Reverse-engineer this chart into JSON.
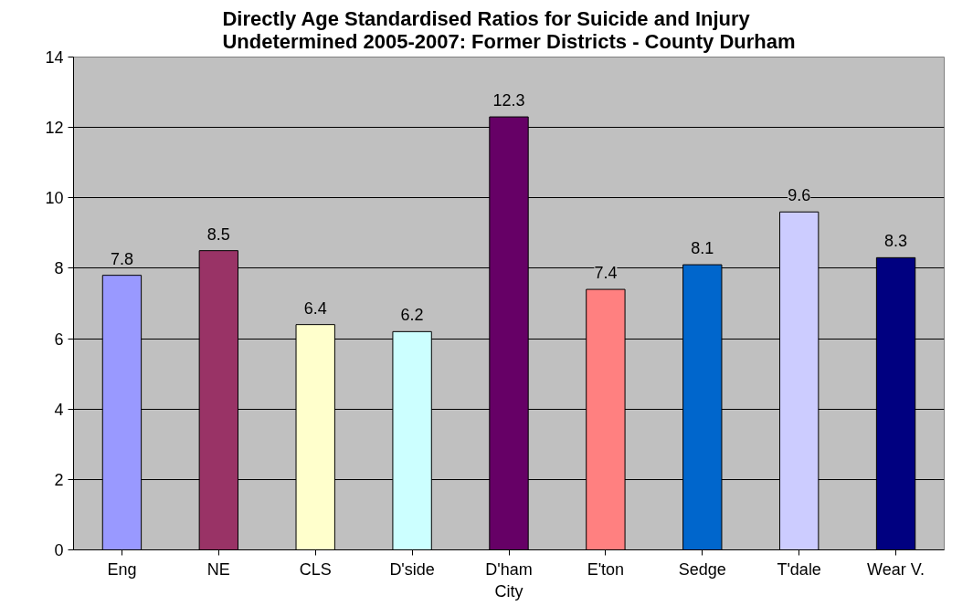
{
  "chart_data": {
    "type": "bar",
    "title": "Directly Age Standardised Ratios for Suicide and Injury\nUndetermined 2005-2007: Former Districts - County Durham",
    "categories": [
      "Eng",
      "NE",
      "CLS",
      "D'side",
      "D'ham\nCity",
      "E'ton",
      "Sedge",
      "T'dale",
      "Wear V."
    ],
    "values": [
      7.8,
      8.5,
      6.4,
      6.2,
      12.3,
      7.4,
      8.1,
      9.6,
      8.3
    ],
    "colors": [
      "#9999ff",
      "#993366",
      "#ffffcc",
      "#ccffff",
      "#660066",
      "#ff8080",
      "#0066cc",
      "#ccccff",
      "#000080"
    ],
    "ylim": [
      0,
      14
    ],
    "yticks": [
      0,
      2,
      4,
      6,
      8,
      10,
      12,
      14
    ],
    "grid": "y",
    "data_labels": true
  }
}
